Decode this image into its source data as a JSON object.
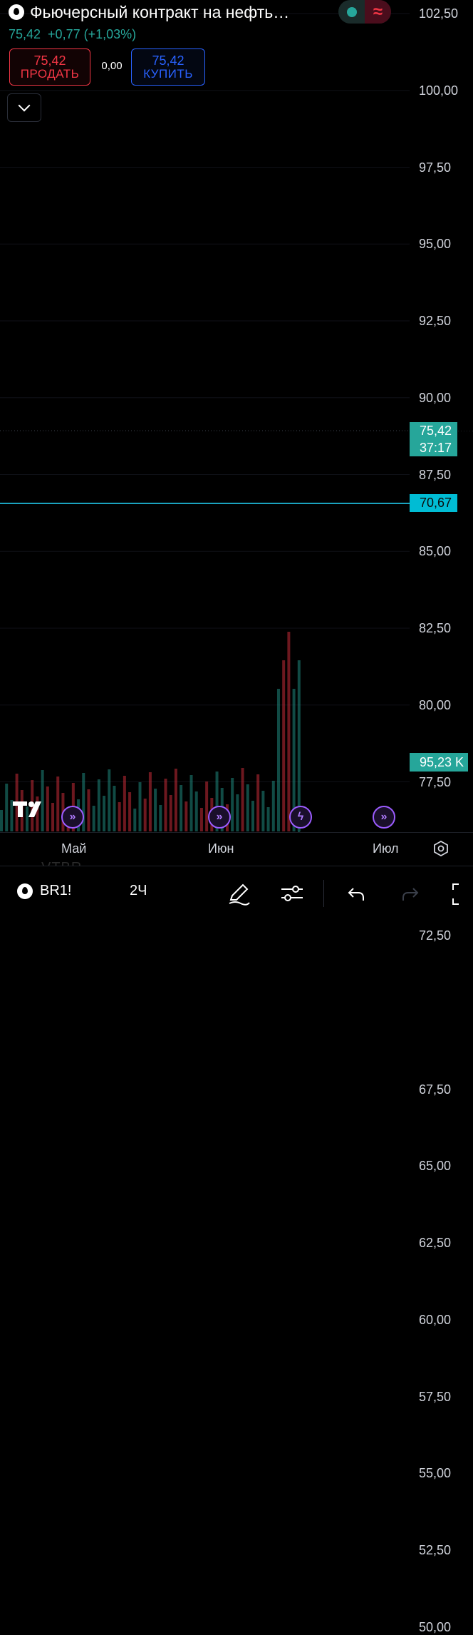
{
  "header": {
    "title": "Фьючерсный контракт на нефть…",
    "price": "75,42",
    "change": "+0,77 (+1,03%)"
  },
  "status": {
    "market_icon": "market-open-dot-icon",
    "delay_icon": "approx-icon",
    "delay_symbol": "≈"
  },
  "trade": {
    "sell_value": "75,42",
    "sell_label": "ПРОДАТЬ",
    "spread": "0,00",
    "buy_value": "75,42",
    "buy_label": "КУПИТЬ"
  },
  "price_axis": {
    "labels": [
      "102,50",
      "100,00",
      "97,50",
      "95,00",
      "92,50",
      "90,00",
      "87,50",
      "85,00",
      "82,50",
      "80,00",
      "77,50",
      "72,50",
      "67,50",
      "65,00",
      "62,50",
      "60,00",
      "57,50",
      "55,00",
      "52,50",
      "50,00"
    ],
    "current_price": "75,42",
    "countdown": "37:17",
    "level_line": "70,67",
    "volume": "95,23 K"
  },
  "time_axis": {
    "labels": [
      "Май",
      "Июн",
      "Июл"
    ]
  },
  "watermark": "VTBR",
  "toolbar": {
    "symbol": "BR1!",
    "interval": "2Ч"
  },
  "colors": {
    "up": "#26a69a",
    "down": "#f23645",
    "level": "#00bcd4",
    "events": "#9c5cff"
  }
}
